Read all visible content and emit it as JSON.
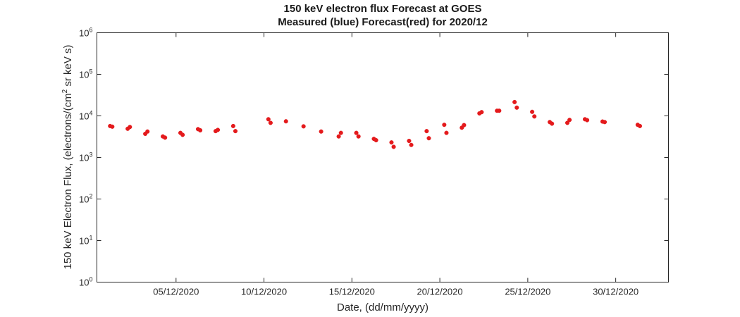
{
  "chart_data": {
    "type": "scatter",
    "title": [
      "150 keV electron flux Forecast at GOES",
      "Measured (blue) Forecast(red) for 2020/12"
    ],
    "xlabel": "Date, (dd/mm/yyyy)",
    "ylabel_parts": [
      "150 keV Electron Flux, (electrons/(cm",
      "2",
      " sr keV s)"
    ],
    "y_scale": "log",
    "ylim": [
      1,
      1000000
    ],
    "xlim": [
      "2020-11-30T12:00",
      "2021-01-02T00:00"
    ],
    "x_ticks": [
      "05/12/2020",
      "10/12/2020",
      "15/12/2020",
      "20/12/2020",
      "25/12/2020",
      "30/12/2020"
    ],
    "y_ticks": [
      {
        "base": "10",
        "exp": "0"
      },
      {
        "base": "10",
        "exp": "1"
      },
      {
        "base": "10",
        "exp": "2"
      },
      {
        "base": "10",
        "exp": "3"
      },
      {
        "base": "10",
        "exp": "4"
      },
      {
        "base": "10",
        "exp": "5"
      },
      {
        "base": "10",
        "exp": "6"
      }
    ],
    "grid": false,
    "series": [
      {
        "color": "#e41a1c",
        "points": [
          {
            "x": "2020-12-01T06:00",
            "y": 5700
          },
          {
            "x": "2020-12-01T09:00",
            "y": 5500
          },
          {
            "x": "2020-12-02T06:00",
            "y": 4900
          },
          {
            "x": "2020-12-02T09:00",
            "y": 5400
          },
          {
            "x": "2020-12-03T06:00",
            "y": 3700
          },
          {
            "x": "2020-12-03T09:00",
            "y": 4200
          },
          {
            "x": "2020-12-04T06:00",
            "y": 3200
          },
          {
            "x": "2020-12-04T09:00",
            "y": 3000
          },
          {
            "x": "2020-12-05T06:00",
            "y": 3900
          },
          {
            "x": "2020-12-05T09:00",
            "y": 3500
          },
          {
            "x": "2020-12-06T06:00",
            "y": 4800
          },
          {
            "x": "2020-12-06T09:00",
            "y": 4500
          },
          {
            "x": "2020-12-07T06:00",
            "y": 4300
          },
          {
            "x": "2020-12-07T09:00",
            "y": 4600
          },
          {
            "x": "2020-12-08T06:00",
            "y": 5700
          },
          {
            "x": "2020-12-08T09:00",
            "y": 4300
          },
          {
            "x": "2020-12-10T06:00",
            "y": 8300
          },
          {
            "x": "2020-12-10T09:00",
            "y": 6800
          },
          {
            "x": "2020-12-11T06:00",
            "y": 7400
          },
          {
            "x": "2020-12-12T06:00",
            "y": 5600
          },
          {
            "x": "2020-12-13T06:00",
            "y": 4200
          },
          {
            "x": "2020-12-14T06:00",
            "y": 3200
          },
          {
            "x": "2020-12-14T09:00",
            "y": 3900
          },
          {
            "x": "2020-12-15T06:00",
            "y": 3900
          },
          {
            "x": "2020-12-15T09:00",
            "y": 3200
          },
          {
            "x": "2020-12-16T06:00",
            "y": 2800
          },
          {
            "x": "2020-12-16T09:00",
            "y": 2600
          },
          {
            "x": "2020-12-17T06:00",
            "y": 2300
          },
          {
            "x": "2020-12-17T09:00",
            "y": 1800
          },
          {
            "x": "2020-12-18T06:00",
            "y": 2500
          },
          {
            "x": "2020-12-18T09:00",
            "y": 2000
          },
          {
            "x": "2020-12-19T06:00",
            "y": 4300
          },
          {
            "x": "2020-12-19T09:00",
            "y": 2900
          },
          {
            "x": "2020-12-20T06:00",
            "y": 6100
          },
          {
            "x": "2020-12-20T09:00",
            "y": 3900
          },
          {
            "x": "2020-12-21T06:00",
            "y": 5200
          },
          {
            "x": "2020-12-21T09:00",
            "y": 6000
          },
          {
            "x": "2020-12-22T06:00",
            "y": 11500
          },
          {
            "x": "2020-12-22T09:00",
            "y": 12300
          },
          {
            "x": "2020-12-23T06:00",
            "y": 13300
          },
          {
            "x": "2020-12-23T09:00",
            "y": 13300
          },
          {
            "x": "2020-12-24T06:00",
            "y": 21500
          },
          {
            "x": "2020-12-24T09:00",
            "y": 15800
          },
          {
            "x": "2020-12-25T06:00",
            "y": 12500
          },
          {
            "x": "2020-12-25T09:00",
            "y": 9700
          },
          {
            "x": "2020-12-26T06:00",
            "y": 7100
          },
          {
            "x": "2020-12-26T09:00",
            "y": 6500
          },
          {
            "x": "2020-12-27T06:00",
            "y": 6800
          },
          {
            "x": "2020-12-27T09:00",
            "y": 8000
          },
          {
            "x": "2020-12-28T06:00",
            "y": 8300
          },
          {
            "x": "2020-12-28T09:00",
            "y": 7900
          },
          {
            "x": "2020-12-29T06:00",
            "y": 7300
          },
          {
            "x": "2020-12-29T09:00",
            "y": 7100
          },
          {
            "x": "2020-12-31T06:00",
            "y": 6100
          },
          {
            "x": "2020-12-31T09:00",
            "y": 5700
          }
        ]
      }
    ]
  }
}
